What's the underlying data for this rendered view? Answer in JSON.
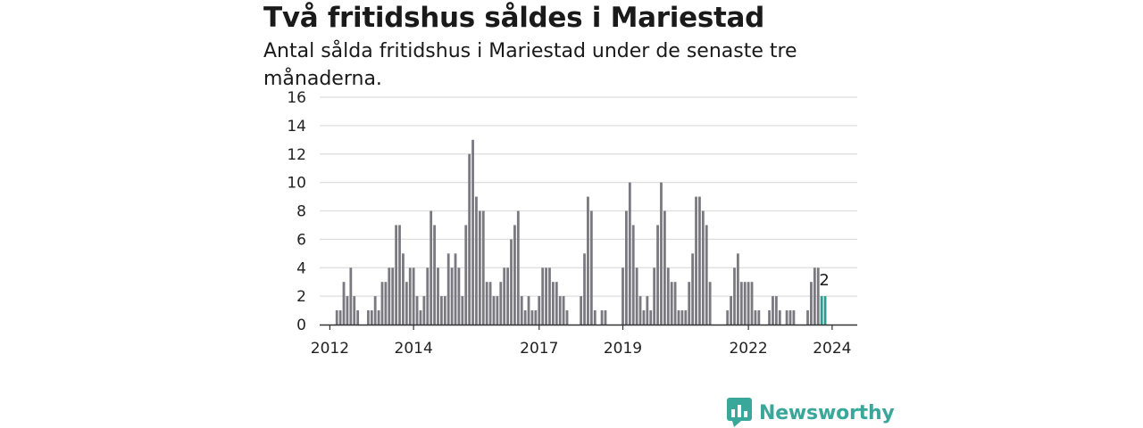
{
  "header": {
    "title": "Två fritidshus såldes i Mariestad",
    "subtitle": "Antal sålda fritidshus i Mariestad under de senaste tre månaderna."
  },
  "brand": {
    "name": "Newsworthy",
    "color": "#3aa79b",
    "icon": "newsworthy-logo-icon"
  },
  "colors": {
    "bar": "#7a7980",
    "highlight": "#2a9d8f",
    "grid": "#dddddd",
    "axis": "#333333"
  },
  "chart_data": {
    "type": "bar",
    "title": "Två fritidshus såldes i Mariestad",
    "subtitle": "Antal sålda fritidshus i Mariestad under de senaste tre månaderna.",
    "xlabel": "",
    "ylabel": "",
    "ylim": [
      0,
      16
    ],
    "yticks": [
      0,
      2,
      4,
      6,
      8,
      10,
      12,
      14,
      16
    ],
    "grid": true,
    "xaxis": {
      "start_year": 2012,
      "start_month": 1,
      "tick_labels": [
        "2012",
        "2014",
        "2017",
        "2019",
        "2022",
        "2024"
      ]
    },
    "values": [
      0,
      0,
      1,
      1,
      3,
      2,
      4,
      2,
      1,
      0,
      0,
      1,
      1,
      2,
      1,
      3,
      3,
      4,
      4,
      7,
      7,
      5,
      3,
      4,
      4,
      2,
      1,
      2,
      4,
      8,
      7,
      4,
      2,
      2,
      5,
      4,
      5,
      4,
      2,
      7,
      12,
      13,
      9,
      8,
      8,
      3,
      3,
      2,
      2,
      3,
      4,
      4,
      6,
      7,
      8,
      2,
      1,
      2,
      1,
      1,
      2,
      4,
      4,
      4,
      3,
      3,
      2,
      2,
      1,
      0,
      0,
      0,
      2,
      5,
      9,
      8,
      1,
      0,
      1,
      1,
      0,
      0,
      0,
      0,
      4,
      8,
      10,
      7,
      4,
      2,
      1,
      2,
      1,
      4,
      7,
      10,
      8,
      4,
      3,
      3,
      1,
      1,
      1,
      3,
      5,
      9,
      9,
      8,
      7,
      3,
      0,
      0,
      0,
      0,
      1,
      2,
      4,
      5,
      3,
      3,
      3,
      3,
      1,
      1,
      0,
      0,
      1,
      2,
      2,
      1,
      0,
      1,
      1,
      1,
      0,
      0,
      0,
      1,
      3,
      4,
      4,
      2,
      2
    ],
    "highlight_last": 2,
    "data_labels": [
      {
        "index": 142,
        "text": "2"
      }
    ]
  }
}
